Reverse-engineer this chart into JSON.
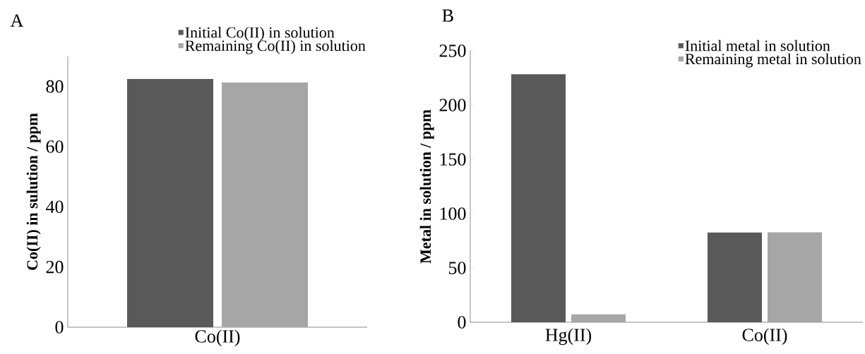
{
  "chart_data": [
    {
      "type": "bar",
      "title": "A",
      "ylabel": "Co(II) in sulution / ppm",
      "categories": [
        "Co(II)"
      ],
      "ylim": [
        0,
        90
      ],
      "yticks": [
        0,
        20,
        40,
        60,
        80
      ],
      "legend": "top right",
      "series": [
        {
          "name": "Initial Co(II) in solution",
          "color": "#595959",
          "values": [
            82.5
          ]
        },
        {
          "name": "Remaining Co(II) in solution",
          "color": "#a6a6a6",
          "values": [
            81.3
          ]
        }
      ]
    },
    {
      "type": "bar",
      "title": "B",
      "ylabel": "Metal in solution / ppm",
      "categories": [
        "Hg(II)",
        "Co(II)"
      ],
      "ylim": [
        0,
        250
      ],
      "yticks": [
        0,
        50,
        100,
        150,
        200,
        250
      ],
      "legend": "top right",
      "series": [
        {
          "name": "Initial metal in solution",
          "color": "#595959",
          "values": [
            228.4,
            82.7
          ]
        },
        {
          "name": "Remaining metal in solution",
          "color": "#a6a6a6",
          "values": [
            7.3,
            82.9
          ]
        }
      ]
    }
  ]
}
